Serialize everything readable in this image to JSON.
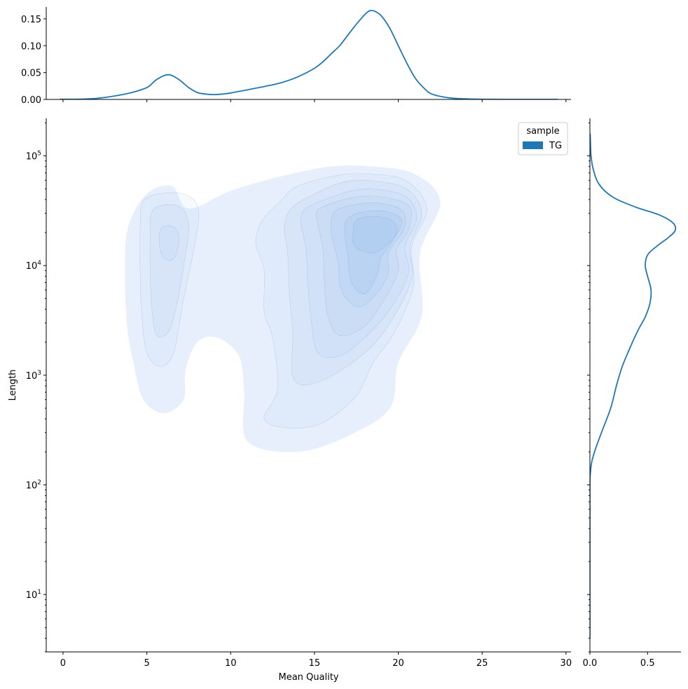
{
  "chart_data": [
    {
      "id": "joint",
      "type": "kde2d",
      "title": "",
      "xlabel": "Mean Quality",
      "ylabel": "Length",
      "xlim": [
        -1,
        30.3
      ],
      "ylim": [
        3,
        220000
      ],
      "yscale": "log",
      "xticks": [
        0,
        5,
        10,
        15,
        20,
        25,
        30
      ],
      "xtick_labels": [
        "0",
        "5",
        "10",
        "15",
        "20",
        "25",
        "30"
      ],
      "yticks": [
        10,
        100,
        1000,
        10000,
        100000
      ],
      "ytick_labels": [
        {
          "base": "10",
          "exp": "1"
        },
        {
          "base": "10",
          "exp": "2"
        },
        {
          "base": "10",
          "exp": "3"
        },
        {
          "base": "10",
          "exp": "4"
        },
        {
          "base": "10",
          "exp": "5"
        }
      ],
      "legend": {
        "title": "sample",
        "entries": [
          "TG"
        ],
        "placement": "upper-right"
      },
      "fill_color": "#8fb8ec",
      "density_peak": {
        "x": 18.2,
        "y": 20000
      },
      "contour_levels": [
        {
          "level": 1,
          "points": [
            [
              7.5,
              33000
            ],
            [
              10,
              48000
            ],
            [
              13,
              65000
            ],
            [
              16,
              80000
            ],
            [
              18.5,
              80000
            ],
            [
              21,
              68000
            ],
            [
              22.5,
              38000
            ],
            [
              21.3,
              13000
            ],
            [
              21.4,
              3500
            ],
            [
              20,
              1300
            ],
            [
              19.5,
              500
            ],
            [
              17,
              280
            ],
            [
              14,
              200
            ],
            [
              11,
              250
            ],
            [
              10.8,
              700
            ],
            [
              10.5,
              1500
            ],
            [
              9.2,
              2200
            ],
            [
              8,
              2000
            ],
            [
              7.3,
              1100
            ],
            [
              7.2,
              600
            ],
            [
              6,
              450
            ],
            [
              4.8,
              600
            ],
            [
              4.2,
              1300
            ],
            [
              3.8,
              3000
            ],
            [
              3.7,
              10000
            ],
            [
              3.9,
              23000
            ],
            [
              5,
              45000
            ],
            [
              6.5,
              53000
            ]
          ]
        },
        {
          "level": 2,
          "points": [
            [
              13,
              39000
            ],
            [
              14,
              53000
            ],
            [
              16.5,
              67000
            ],
            [
              18.5,
              68000
            ],
            [
              20.5,
              59000
            ],
            [
              21.7,
              33000
            ],
            [
              20.8,
              15000
            ],
            [
              20.9,
              6500
            ],
            [
              19.8,
              2500
            ],
            [
              18.5,
              1300
            ],
            [
              17.5,
              650
            ],
            [
              15.5,
              370
            ],
            [
              13.5,
              330
            ],
            [
              12,
              400
            ],
            [
              12.8,
              750
            ],
            [
              12.5,
              2200
            ],
            [
              12,
              3800
            ],
            [
              12,
              9000
            ],
            [
              11.5,
              16000
            ],
            [
              11.9,
              26000
            ]
          ]
        },
        {
          "level": 3,
          "points": [
            [
              13.6,
              33000
            ],
            [
              15,
              45000
            ],
            [
              16.8,
              58000
            ],
            [
              18.5,
              59000
            ],
            [
              20.5,
              50000
            ],
            [
              21.4,
              30000
            ],
            [
              20.7,
              15000
            ],
            [
              20.8,
              7500
            ],
            [
              19.5,
              3000
            ],
            [
              18,
              1600
            ],
            [
              15.5,
              900
            ],
            [
              13.8,
              900
            ],
            [
              13.7,
              2500
            ],
            [
              13.5,
              5500
            ],
            [
              13.4,
              13000
            ],
            [
              13.2,
              22000
            ]
          ]
        },
        {
          "level": 4,
          "points": [
            [
              14.5,
              33000
            ],
            [
              16,
              42000
            ],
            [
              17.5,
              49000
            ],
            [
              19,
              49000
            ],
            [
              20.5,
              42000
            ],
            [
              21.1,
              27000
            ],
            [
              20.4,
              15000
            ],
            [
              20.6,
              8500
            ],
            [
              19.5,
              4000
            ],
            [
              18,
              2200
            ],
            [
              16.5,
              1500
            ],
            [
              15.2,
              1600
            ],
            [
              14.8,
              3200
            ],
            [
              14.6,
              7000
            ],
            [
              14.5,
              14000
            ],
            [
              14.2,
              25000
            ]
          ]
        },
        {
          "level": 5,
          "points": [
            [
              15.2,
              32000
            ],
            [
              16.5,
              39000
            ],
            [
              18,
              43000
            ],
            [
              19.5,
              41000
            ],
            [
              20.7,
              34000
            ],
            [
              20.6,
              21000
            ],
            [
              19.9,
              14000
            ],
            [
              20,
              9000
            ],
            [
              19.2,
              5000
            ],
            [
              18,
              2800
            ],
            [
              16.5,
              2300
            ],
            [
              15.8,
              3500
            ],
            [
              15.6,
              7000
            ],
            [
              15.5,
              14000
            ],
            [
              15.2,
              24000
            ]
          ]
        },
        {
          "level": 6,
          "points": [
            [
              16.2,
              31000
            ],
            [
              17.5,
              36000
            ],
            [
              19,
              37000
            ],
            [
              20.3,
              31000
            ],
            [
              20.3,
              21000
            ],
            [
              19.4,
              13000
            ],
            [
              19.4,
              8500
            ],
            [
              18.7,
              5500
            ],
            [
              17.6,
              4200
            ],
            [
              16.6,
              6000
            ],
            [
              16.4,
              11000
            ],
            [
              16,
              20000
            ]
          ]
        },
        {
          "level": 7,
          "points": [
            [
              17,
              27000
            ],
            [
              18,
              31000
            ],
            [
              19.3,
              31000
            ],
            [
              20.2,
              26000
            ],
            [
              19.8,
              18000
            ],
            [
              19,
              12000
            ],
            [
              18.7,
              8000
            ],
            [
              18,
              5500
            ],
            [
              17.2,
              7000
            ],
            [
              17,
              12000
            ],
            [
              16.8,
              20000
            ]
          ]
        },
        {
          "level": 8,
          "points": [
            [
              17.5,
              26000
            ],
            [
              18.5,
              28000
            ],
            [
              19.6,
              26000
            ],
            [
              19.9,
              20000
            ],
            [
              19.1,
              14500
            ],
            [
              18.3,
              13000
            ],
            [
              17.4,
              15000
            ],
            [
              17.3,
              20000
            ]
          ]
        },
        {
          "level": 2,
          "points": [
            [
              4.8,
              39000
            ],
            [
              6.2,
              46000
            ],
            [
              7.5,
              43000
            ],
            [
              8.1,
              31000
            ],
            [
              7.8,
              14000
            ],
            [
              7.2,
              5000
            ],
            [
              6.6,
              1600
            ],
            [
              5.8,
              1200
            ],
            [
              5,
              1600
            ],
            [
              4.7,
              3500
            ],
            [
              4.6,
              9000
            ],
            [
              4.6,
              22000
            ]
          ]
        },
        {
          "level": 3,
          "points": [
            [
              5.3,
              31000
            ],
            [
              6.3,
              36000
            ],
            [
              7.2,
              32000
            ],
            [
              7.5,
              21000
            ],
            [
              7.2,
              10000
            ],
            [
              6.8,
              4500
            ],
            [
              6.3,
              2500
            ],
            [
              5.6,
              2300
            ],
            [
              5.3,
              4000
            ],
            [
              5.2,
              9000
            ],
            [
              5.2,
              18000
            ]
          ]
        },
        {
          "level": 4,
          "points": [
            [
              5.8,
              21000
            ],
            [
              6.3,
              23000
            ],
            [
              6.8,
              21000
            ],
            [
              6.9,
              16000
            ],
            [
              6.6,
              11500
            ],
            [
              6.1,
              11500
            ],
            [
              5.8,
              14000
            ]
          ]
        }
      ],
      "contour_opacities": [
        0,
        0.22,
        0.08,
        0.08,
        0.09,
        0.1,
        0.12,
        0.14,
        0.18
      ]
    },
    {
      "id": "marg_x",
      "type": "line",
      "x": [
        -0.2,
        1,
        2,
        3,
        4,
        5,
        5.5,
        6,
        6.3,
        6.6,
        7,
        7.5,
        8,
        8.5,
        9,
        9.5,
        10,
        11,
        12,
        13,
        14,
        15,
        15.5,
        16,
        16.5,
        17,
        17.5,
        18,
        18.3,
        18.6,
        19,
        19.5,
        20,
        20.5,
        21,
        21.5,
        22,
        23,
        24,
        25,
        27,
        29.5
      ],
      "y": [
        0.0002,
        0.0005,
        0.002,
        0.006,
        0.012,
        0.022,
        0.035,
        0.044,
        0.046,
        0.043,
        0.035,
        0.022,
        0.013,
        0.01,
        0.009,
        0.01,
        0.012,
        0.018,
        0.024,
        0.031,
        0.042,
        0.058,
        0.07,
        0.085,
        0.1,
        0.12,
        0.14,
        0.158,
        0.165,
        0.164,
        0.155,
        0.132,
        0.1,
        0.068,
        0.04,
        0.022,
        0.01,
        0.003,
        0.001,
        0.0003,
        0.0001,
        0.0001
      ],
      "xlim": [
        -1,
        30.3
      ],
      "ylim": [
        0,
        0.172
      ],
      "yticks": [
        0,
        0.05,
        0.1,
        0.15
      ],
      "ytick_labels": [
        "0.00",
        "0.05",
        "0.10",
        "0.15"
      ],
      "xticks": [
        0,
        5,
        10,
        15,
        20,
        25,
        30
      ],
      "color": "#1f77b4"
    },
    {
      "id": "marg_y",
      "type": "line",
      "x": [
        0,
        0,
        0,
        0.005,
        0.015,
        0.04,
        0.1,
        0.18,
        0.23,
        0.28,
        0.35,
        0.42,
        0.48,
        0.52,
        0.53,
        0.5,
        0.48,
        0.5,
        0.58,
        0.68,
        0.74,
        0.72,
        0.6,
        0.4,
        0.2,
        0.08,
        0.03,
        0.01,
        0.002
      ],
      "y": [
        4,
        30,
        100,
        130,
        160,
        200,
        300,
        500,
        800,
        1200,
        1800,
        2600,
        3400,
        4500,
        6000,
        8000,
        10000,
        12500,
        15000,
        18000,
        21000,
        24500,
        29000,
        34000,
        42000,
        55000,
        75000,
        100000,
        160000
      ],
      "ylim": [
        3,
        220000
      ],
      "yscale": "log",
      "xlim": [
        0,
        0.79
      ],
      "xticks": [
        0,
        0.5
      ],
      "xtick_labels": [
        "0.0",
        "0.5"
      ],
      "color": "#1f77b4"
    }
  ]
}
